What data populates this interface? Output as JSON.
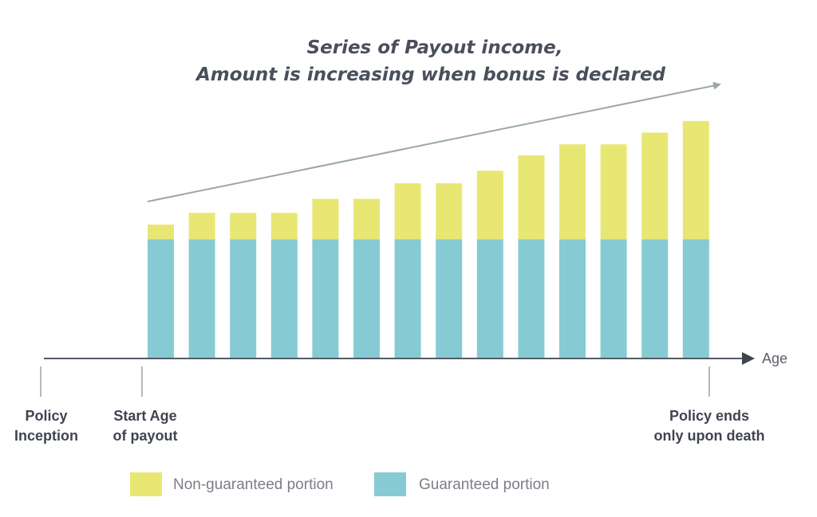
{
  "chart_data": {
    "type": "bar",
    "stacked": true,
    "title_lines": [
      "Series of Payout income,",
      "Amount is increasing when bonus is declared"
    ],
    "xlabel": "Age",
    "ylabel": "",
    "grid": false,
    "legend_position": "bottom-left",
    "series": [
      {
        "name": "Guaranteed portion",
        "color": "#86cbd3",
        "values": [
          152,
          152,
          152,
          152,
          152,
          152,
          152,
          152,
          152,
          152,
          152,
          152,
          152,
          152
        ]
      },
      {
        "name": "Non-guaranteed portion",
        "color": "#e8e774",
        "values": [
          19,
          34,
          34,
          34,
          52,
          52,
          72,
          72,
          88,
          108,
          122,
          122,
          137,
          152
        ]
      }
    ],
    "ylim": [
      0,
      310
    ],
    "legend_order": [
      "Non-guaranteed portion",
      "Guaranteed portion"
    ],
    "timeline_markers": [
      {
        "lines": [
          "Policy",
          "Inception"
        ]
      },
      {
        "lines": [
          "Start Age",
          "of payout"
        ]
      },
      {
        "lines": [
          "Policy ends",
          "only upon death"
        ]
      }
    ],
    "colors": {
      "axis": "#555a66",
      "trend_arrow": "#9aa6a8",
      "text": "#4a4f5c"
    }
  }
}
